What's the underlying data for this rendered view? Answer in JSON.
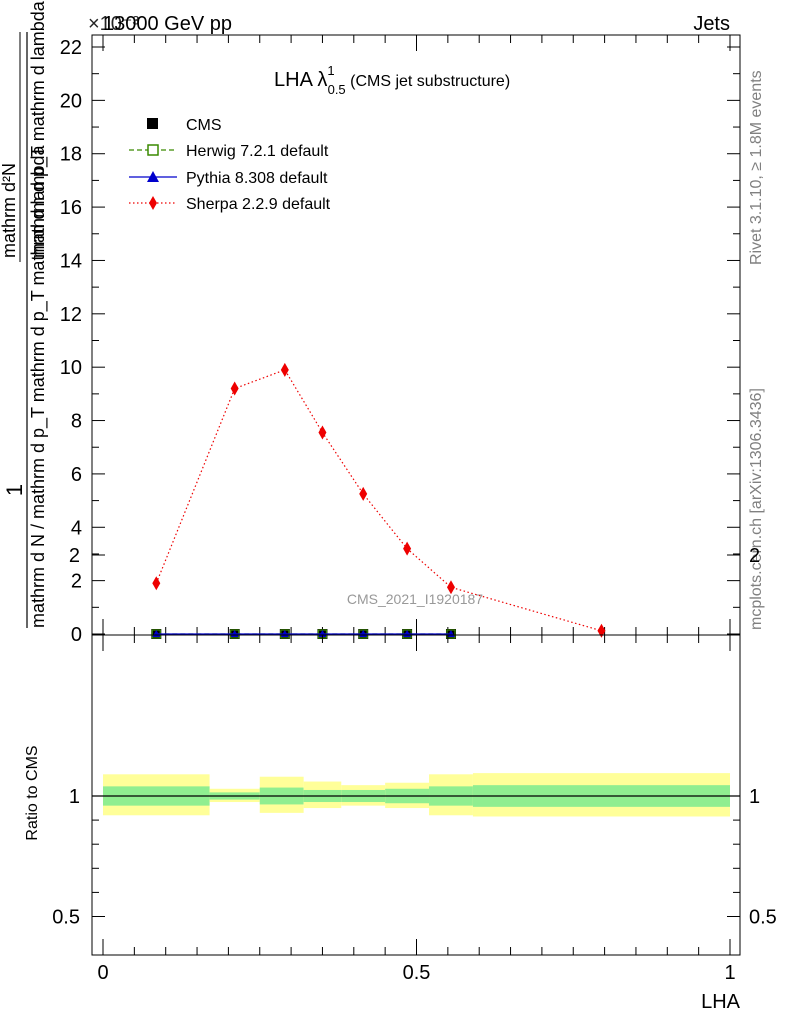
{
  "header": {
    "left_title": "13000 GeV pp",
    "right_title": "Jets",
    "exponent_label": "×10⁻³"
  },
  "side_labels": {
    "rivet": "Rivet 3.1.10, ≥ 1.8M events",
    "mcplots": "mcplots.cern.ch [arXiv:1306.3436]"
  },
  "watermark": "CMS_2021_I1920187",
  "colors": {
    "herwig": "#3a8a00",
    "pythia": "#0000cc",
    "sherpa": "#ee0000",
    "band_inner": "#90ee90",
    "band_outer": "#ffff99"
  },
  "chart_data": {
    "type": "line",
    "title": {
      "main": "LHA λ",
      "sup": "1",
      "sub": "0.5",
      "rest": " (CMS jet substructure)"
    },
    "ylabel": {
      "numerator": "1",
      "denominator": "mathrm d N / mathrm d p_T mathrm d p_T mathrm d lambda",
      "right_numerator": "mathrm d²N",
      "right_denominator": "mathrm d p_T mathrm d lambda"
    },
    "xlabel": "LHA",
    "xlim": [
      0,
      1
    ],
    "ylim": [
      0,
      22.5
    ],
    "y_scale_factor": "1e-3",
    "y_ticks": [
      "0",
      "2",
      "4",
      "6",
      "8",
      "10",
      "12",
      "14",
      "16",
      "18",
      "20",
      "22"
    ],
    "x_ticks": [
      "0",
      "0.5",
      "1"
    ],
    "legend": [
      "CMS",
      "Herwig 7.2.1 default",
      "Pythia 8.308 default",
      "Sherpa 2.2.9 default"
    ],
    "series": [
      {
        "name": "CMS",
        "style": "marker-square",
        "x": [
          0.085,
          0.21,
          0.29,
          0.35,
          0.415,
          0.485,
          0.555
        ],
        "y": [
          0,
          0,
          0,
          0,
          0,
          0,
          0
        ]
      },
      {
        "name": "Herwig 7.2.1 default",
        "style": "dashed-open-square",
        "x": [
          0.085,
          0.21,
          0.29,
          0.35,
          0.415,
          0.485,
          0.555
        ],
        "y": [
          0,
          0,
          0,
          0,
          0,
          0,
          0
        ]
      },
      {
        "name": "Pythia 8.308 default",
        "style": "solid-triangle",
        "x": [
          0.085,
          0.21,
          0.29,
          0.35,
          0.415,
          0.485,
          0.555
        ],
        "y": [
          0,
          0,
          0,
          0,
          0,
          0,
          0
        ]
      },
      {
        "name": "Sherpa 2.2.9 default",
        "style": "dotted-diamond",
        "x": [
          0.085,
          0.21,
          0.29,
          0.35,
          0.415,
          0.485,
          0.555,
          0.795
        ],
        "y": [
          1.9,
          9.2,
          9.9,
          7.55,
          5.25,
          3.2,
          1.75,
          0.12
        ]
      }
    ],
    "ratio": {
      "ylabel": "Ratio to CMS",
      "y_ticks": [
        "0.5",
        "1",
        "2"
      ],
      "bins": [
        {
          "x": [
            0.0,
            0.17
          ],
          "inner": [
            0.96,
            1.04
          ],
          "outer": [
            0.92,
            1.09
          ]
        },
        {
          "x": [
            0.17,
            0.25
          ],
          "inner": [
            0.985,
            1.015
          ],
          "outer": [
            0.975,
            1.03
          ]
        },
        {
          "x": [
            0.25,
            0.32
          ],
          "inner": [
            0.965,
            1.035
          ],
          "outer": [
            0.93,
            1.08
          ]
        },
        {
          "x": [
            0.32,
            0.38
          ],
          "inner": [
            0.975,
            1.025
          ],
          "outer": [
            0.95,
            1.06
          ]
        },
        {
          "x": [
            0.38,
            0.45
          ],
          "inner": [
            0.975,
            1.025
          ],
          "outer": [
            0.96,
            1.045
          ]
        },
        {
          "x": [
            0.45,
            0.52
          ],
          "inner": [
            0.97,
            1.03
          ],
          "outer": [
            0.95,
            1.055
          ]
        },
        {
          "x": [
            0.52,
            0.59
          ],
          "inner": [
            0.96,
            1.04
          ],
          "outer": [
            0.92,
            1.09
          ]
        },
        {
          "x": [
            0.59,
            1.0
          ],
          "inner": [
            0.955,
            1.045
          ],
          "outer": [
            0.915,
            1.095
          ]
        }
      ]
    }
  }
}
